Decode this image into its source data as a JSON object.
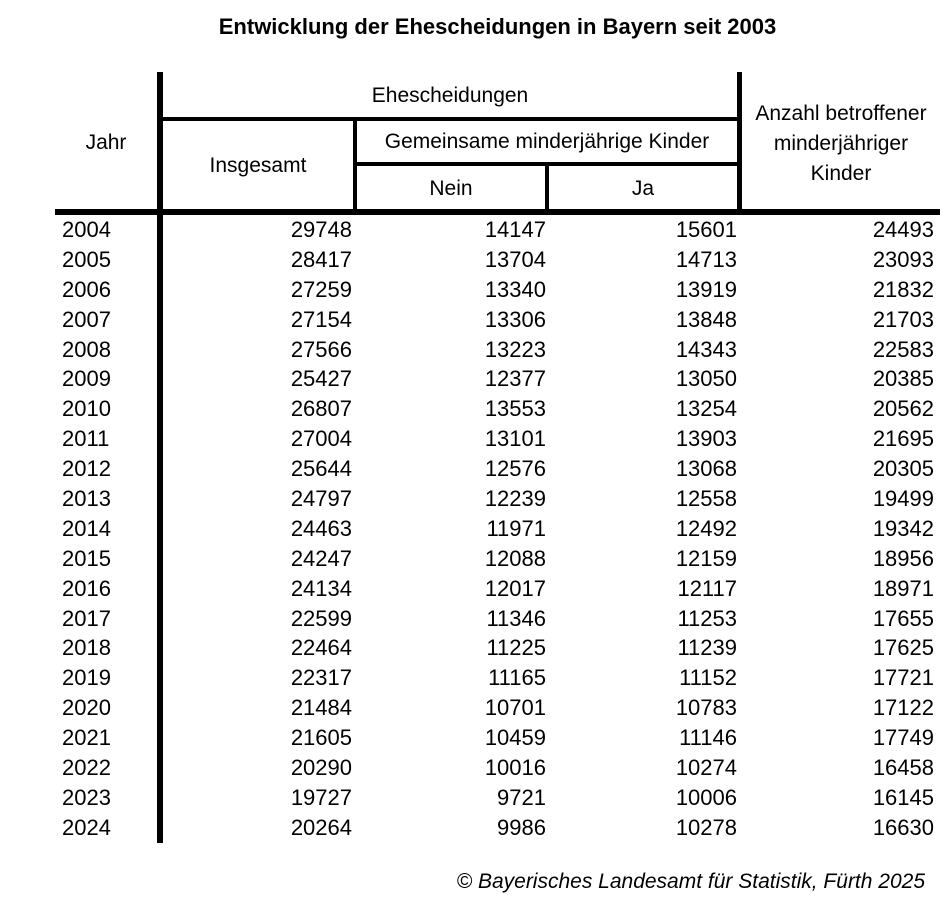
{
  "title": "Entwicklung der Ehescheidungen in Bayern seit 2003",
  "header": {
    "jahr": "Jahr",
    "ehescheidungen": "Ehescheidungen",
    "insgesamt": "Insgesamt",
    "gemeinsame": "Gemeinsame minderjährige Kinder",
    "nein": "Nein",
    "ja": "Ja",
    "anzahl_label": "Anzahl betroffener minderjähriger Kinder",
    "anzahl_lines": [
      "Anzahl betroffener",
      "minderjähriger",
      "Kinder"
    ]
  },
  "footer": {
    "copyright": "© Bayerisches Landesamt für Statistik, Fürth 2025"
  },
  "colors": {
    "text": "#000000",
    "background": "#ffffff",
    "line": "#000000"
  },
  "chart_data": {
    "type": "table",
    "title": "Entwicklung der Ehescheidungen in Bayern seit 2003",
    "columns": [
      "Jahr",
      "Ehescheidungen – Insgesamt",
      "Ehescheidungen – Gemeinsame minderjährige Kinder: Nein",
      "Ehescheidungen – Gemeinsame minderjährige Kinder: Ja",
      "Anzahl betroffener minderjähriger Kinder"
    ],
    "rows": [
      [
        "2004",
        "29748",
        "14147",
        "15601",
        "24493"
      ],
      [
        "2005",
        "28417",
        "13704",
        "14713",
        "23093"
      ],
      [
        "2006",
        "27259",
        "13340",
        "13919",
        "21832"
      ],
      [
        "2007",
        "27154",
        "13306",
        "13848",
        "21703"
      ],
      [
        "2008",
        "27566",
        "13223",
        "14343",
        "22583"
      ],
      [
        "2009",
        "25427",
        "12377",
        "13050",
        "20385"
      ],
      [
        "2010",
        "26807",
        "13553",
        "13254",
        "20562"
      ],
      [
        "2011",
        "27004",
        "13101",
        "13903",
        "21695"
      ],
      [
        "2012",
        "25644",
        "12576",
        "13068",
        "20305"
      ],
      [
        "2013",
        "24797",
        "12239",
        "12558",
        "19499"
      ],
      [
        "2014",
        "24463",
        "11971",
        "12492",
        "19342"
      ],
      [
        "2015",
        "24247",
        "12088",
        "12159",
        "18956"
      ],
      [
        "2016",
        "24134",
        "12017",
        "12117",
        "18971"
      ],
      [
        "2017",
        "22599",
        "11346",
        "11253",
        "17655"
      ],
      [
        "2018",
        "22464",
        "11225",
        "11239",
        "17625"
      ],
      [
        "2019",
        "22317",
        "11165",
        "11152",
        "17721"
      ],
      [
        "2020",
        "21484",
        "10701",
        "10783",
        "17122"
      ],
      [
        "2021",
        "21605",
        "10459",
        "11146",
        "17749"
      ],
      [
        "2022",
        "20290",
        "10016",
        "10274",
        "16458"
      ],
      [
        "2023",
        "19727",
        "9721",
        "10006",
        "16145"
      ],
      [
        "2024",
        "20264",
        "9986",
        "10278",
        "16630"
      ]
    ],
    "source": "© Bayerisches Landesamt für Statistik, Fürth 2025"
  }
}
